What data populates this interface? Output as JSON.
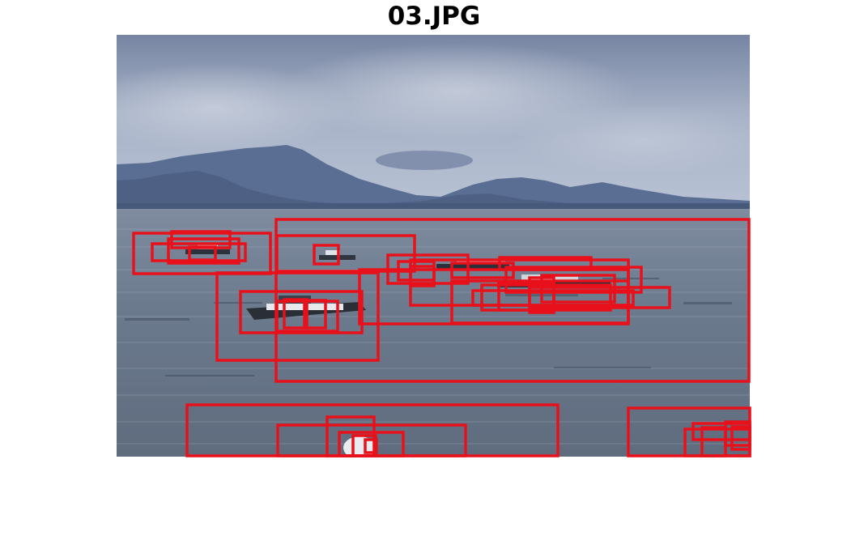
{
  "figure": {
    "title": "03.JPG"
  },
  "colors": {
    "box_stroke": "#e8111b",
    "sky_top": "#7f8dab",
    "sky_bottom": "#b7c1d3",
    "mountains": "#55698f",
    "water": "#6b7a8f"
  },
  "detections": {
    "count": 40
  }
}
